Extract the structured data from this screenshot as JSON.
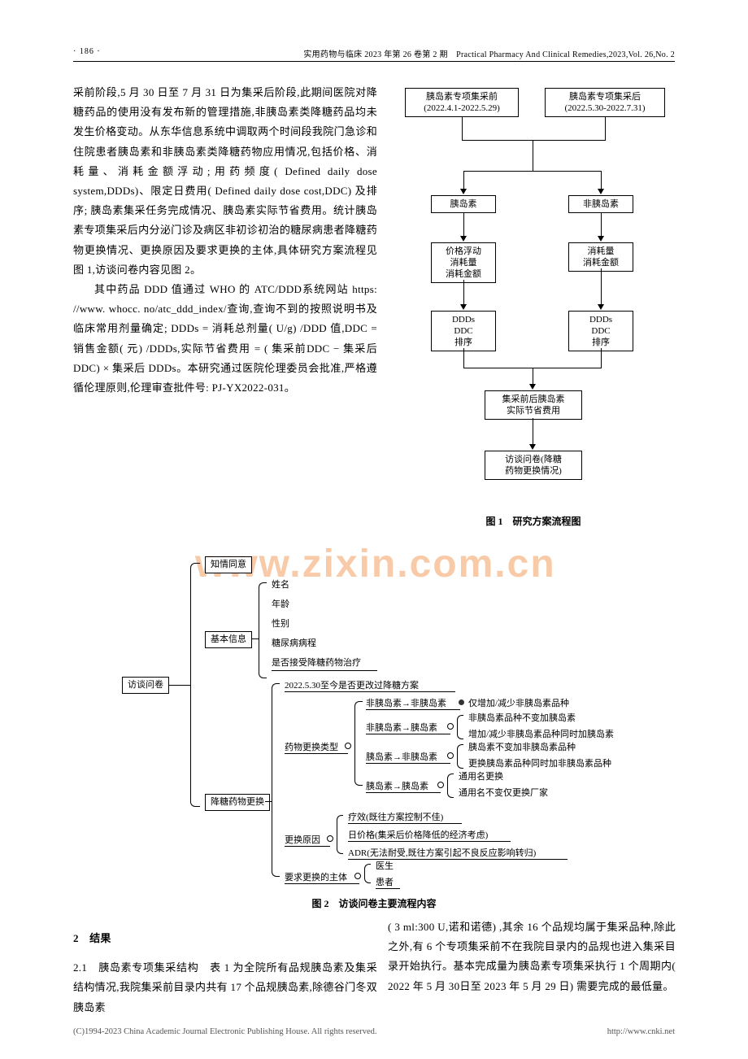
{
  "header": {
    "page_number": "· 186 ·",
    "journal": "实用药物与临床 2023 年第 26 卷第 2 期　Practical Pharmacy And Clinical Remedies,2023,Vol. 26,No. 2"
  },
  "paragraphs": {
    "p1": "采前阶段,5 月 30 日至 7 月 31 日为集采后阶段,此期间医院对降糖药品的使用没有发布新的管理措施,非胰岛素类降糖药品均未发生价格变动。从东华信息系统中调取两个时间段我院门急诊和住院患者胰岛素和非胰岛素类降糖药物应用情况,包括价格、消耗量、消耗金额浮动;用药频度( Defined daily dose system,DDDs)、限定日费用( Defined daily dose cost,DDC) 及排序; 胰岛素集采任务完成情况、胰岛素实际节省费用。统计胰岛素专项集采后内分泌门诊及病区非初诊初治的糖尿病患者降糖药物更换情况、更换原因及要求更换的主体,具体研究方案流程见图 1,访谈问卷内容见图 2。",
    "p2": "其中药品 DDD 值通过 WHO 的 ATC/DDD系统网站 https: //www. whocc. no/atc_ddd_index/查询,查询不到的按照说明书及临床常用剂量确定; DDDs = 消耗总剂量( U/g) /DDD 值,DDC = 销售金额( 元) /DDDs,实际节省费用 = ( 集采前DDC − 集采后 DDC) × 集采后 DDDs。本研究通过医院伦理委员会批准,严格遵循伦理原则,伦理审查批件号: PJ-YX2022-031。"
  },
  "fig1": {
    "caption": "图 1　研究方案流程图",
    "boxes": {
      "b1": "胰岛素专项集采前\n(2022.4.1-2022.5.29)",
      "b2": "胰岛素专项集采后\n(2022.5.30-2022.7.31)",
      "b3": "胰岛素",
      "b4": "非胰岛素",
      "b5": "价格浮动\n消耗量\n消耗金额",
      "b6": "消耗量\n消耗金额",
      "b7": "DDDs\nDDC\n排序",
      "b8": "DDDs\nDDC\n排序",
      "b9": "集采前后胰岛素\n实际节省费用",
      "b10": "访谈问卷(降糖\n药物更换情况)"
    },
    "colors": {
      "box_border": "#000000",
      "box_bg": "#ffffff",
      "line": "#000000"
    }
  },
  "fig2": {
    "caption": "图 2　访谈问卷主要流程内容",
    "root": "访谈问卷",
    "level1": {
      "a": "知情同意",
      "b": "基本信息",
      "c": "降糖药物更换"
    },
    "basic_info": {
      "i1": "姓名",
      "i2": "年龄",
      "i3": "性别",
      "i4": "糖尿病病程",
      "i5": "是否接受降糖药物治疗"
    },
    "change": {
      "c1": "2022.5.30至今是否更改过降糖方案",
      "c2": "药物更换类型",
      "c3": "更换原因",
      "c4": "要求更换的主体"
    },
    "change_type": {
      "t1": "非胰岛素→非胰岛素",
      "t2": "非胰岛素→胰岛素",
      "t3": "胰岛素→非胰岛素",
      "t4": "胰岛素→胰岛素"
    },
    "t1_sub": {
      "s1": "仅增加/减少非胰岛素品种"
    },
    "t2_sub": {
      "s1": "非胰岛素品种不变加胰岛素",
      "s2": "增加/减少非胰岛素品种同时加胰岛素"
    },
    "t3_sub": {
      "s1": "胰岛素不变加非胰岛素品种",
      "s2": "更换胰岛素品种同时加非胰岛素品种"
    },
    "t4_sub": {
      "s1": "通用名更换",
      "s2": "通用名不变仅更换厂家"
    },
    "reason": {
      "r1": "疗效(既往方案控制不佳)",
      "r2": "日价格(集采后价格降低的经济考虑)",
      "r3": "ADR(无法耐受,既往方案引起不良反应影响转归)"
    },
    "subject": {
      "s1": "医生",
      "s2": "患者"
    }
  },
  "watermark": "www.zixin.com.cn",
  "section2": {
    "head": "2　结果",
    "p1": "2.1　胰岛素专项集采结构　表 1 为全院所有品规胰岛素及集采结构情况,我院集采前目录内共有 17 个品规胰岛素,除德谷门冬双胰岛素",
    "p2": "( 3 ml:300 U,诺和诺德) ,其余 16 个品规均属于集采品种,除此之外,有 6 个专项集采前不在我院目录内的品规也进入集采目录开始执行。基本完成量为胰岛素专项集采执行 1 个周期内( 2022 年 5 月 30日至 2023 年 5 月 29 日) 需要完成的最低量。"
  },
  "footer": {
    "left": "(C)1994-2023 China Academic Journal Electronic Publishing House. All rights reserved.",
    "right": "http://www.cnki.net"
  }
}
